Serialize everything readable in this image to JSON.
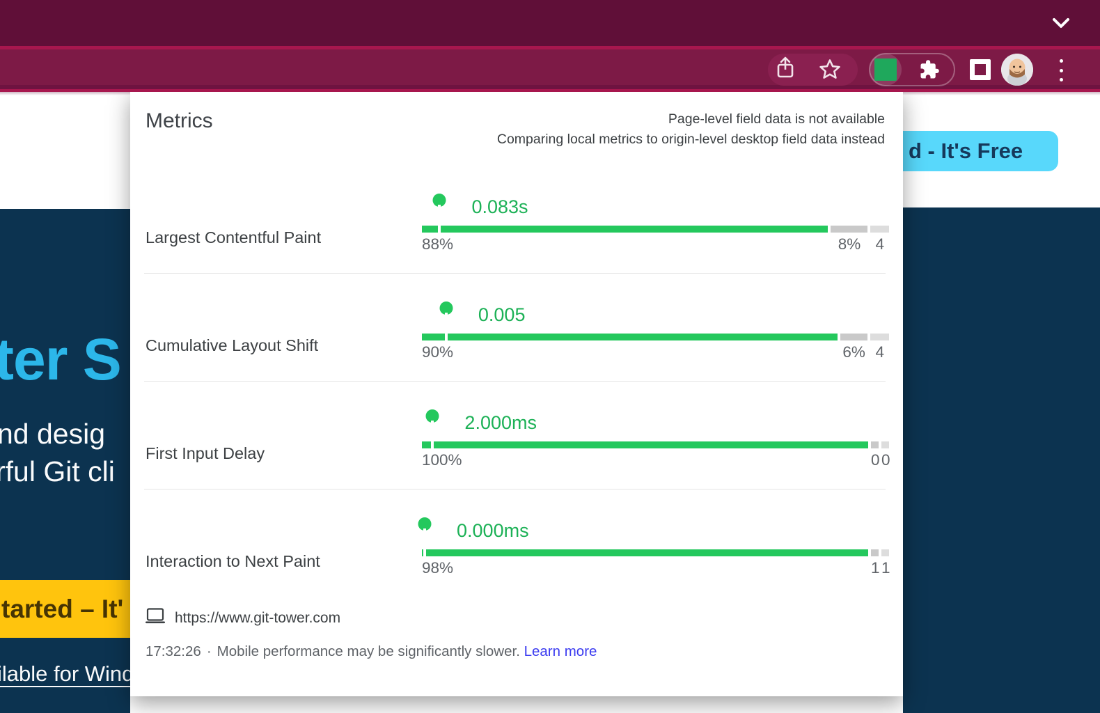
{
  "browser": {
    "toolbar_icons": [
      "chevron-down",
      "share",
      "bookmark-star",
      "web-vitals-extension",
      "extensions-puzzle",
      "window-square",
      "profile-avatar",
      "menu-dots"
    ],
    "colors": {
      "top_strip": "#600F38",
      "toolbar": "#7D1A46",
      "accent_line": "#A7174E",
      "extension_green": "#1FA85C"
    }
  },
  "popup": {
    "title": "Metrics",
    "note_line1": "Page-level field data is not available",
    "note_line2": "Comparing local metrics to origin-level desktop field data instead",
    "good_color": "#24C85D",
    "metrics": [
      {
        "name": "Largest Contentful Paint",
        "value": "0.083s",
        "marker_pct": 3.8,
        "segments": [
          {
            "pct": 88,
            "label": "88%",
            "tone": "good"
          },
          {
            "pct": 8,
            "label": "8%",
            "tone": "mid"
          },
          {
            "pct": 4,
            "label": "4",
            "tone": "faint"
          }
        ]
      },
      {
        "name": "Cumulative Layout Shift",
        "value": "0.005",
        "marker_pct": 5.2,
        "segments": [
          {
            "pct": 90,
            "label": "90%",
            "tone": "good"
          },
          {
            "pct": 6,
            "label": "6%",
            "tone": "mid"
          },
          {
            "pct": 4,
            "label": "4",
            "tone": "faint"
          }
        ]
      },
      {
        "name": "First Input Delay",
        "value": "2.000ms",
        "marker_pct": 2.3,
        "segments": [
          {
            "pct": 100,
            "label": "100%",
            "tone": "good"
          },
          {
            "pct": 0,
            "label": "0",
            "tone": "mid"
          },
          {
            "pct": 0,
            "label": "0",
            "tone": "faint"
          }
        ]
      },
      {
        "name": "Interaction to Next Paint",
        "value": "0.000ms",
        "marker_pct": 0.6,
        "segments": [
          {
            "pct": 98,
            "label": "98%",
            "tone": "good"
          },
          {
            "pct": 1,
            "label": "1",
            "tone": "mid"
          },
          {
            "pct": 1,
            "label": "1",
            "tone": "faint"
          }
        ]
      }
    ],
    "footer": {
      "url": "https://www.git-tower.com",
      "timestamp": "17:32:26",
      "separator": "·",
      "message": "Mobile performance may be significantly slower.",
      "link_label": "Learn more"
    }
  },
  "page": {
    "heading_fragment": "ter S",
    "tagline_line1": "nd desig",
    "tagline_line2": "rful Git cli",
    "yellow_button_label": "tarted – It'",
    "windows_link_fragment": "ilable for Wind",
    "free_button_label": "d - It's Free",
    "colors": {
      "navy": "#0C3350",
      "cyan": "#2CB7EA",
      "yellow": "#FFC40D",
      "light_blue": "#58D8FB"
    }
  }
}
